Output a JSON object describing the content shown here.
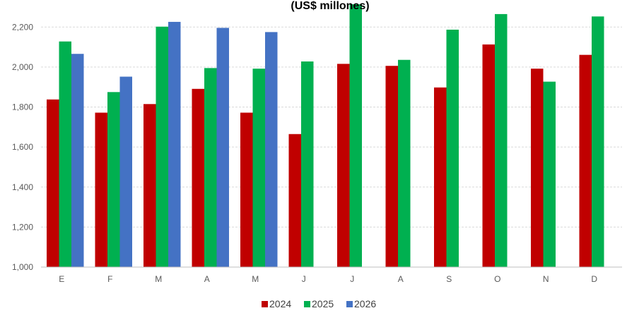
{
  "chart_data": {
    "type": "bar",
    "title": "(US$ millones)",
    "xlabel": "",
    "ylabel": "",
    "ylim": [
      1000,
      2300
    ],
    "yticks": [
      1000,
      1200,
      1400,
      1600,
      1800,
      2000,
      2200
    ],
    "grid": true,
    "legend_position": "bottom",
    "categories": [
      "E",
      "F",
      "M",
      "A",
      "M",
      "J",
      "J",
      "A",
      "S",
      "O",
      "N",
      "D"
    ],
    "series": [
      {
        "name": "2024",
        "color": "#C00000",
        "values": [
          1838,
          1772,
          1815,
          1891,
          1772,
          1665,
          2016,
          2006,
          1898,
          2113,
          1992,
          2061
        ]
      },
      {
        "name": "2025",
        "color": "#00B050",
        "values": [
          2128,
          1875,
          2202,
          1995,
          1992,
          2028,
          2314,
          2036,
          2187,
          2265,
          1927,
          2253
        ]
      },
      {
        "name": "2026",
        "color": "#4472C4",
        "values": [
          2066,
          1952,
          2226,
          2196,
          2175,
          null,
          null,
          null,
          null,
          null,
          null,
          null
        ]
      }
    ]
  }
}
